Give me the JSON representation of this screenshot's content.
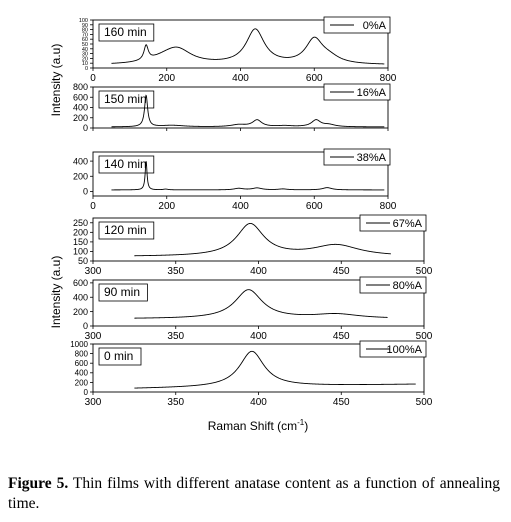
{
  "figure": {
    "ylabel_top": "Intensity (a.u)",
    "ylabel_bottom": "Intensity (a.u)",
    "xlabel": "Raman Shift (cm",
    "xlabel_sup": "-1",
    "xlabel_end": ")"
  },
  "caption": {
    "label": "Figure 5.",
    "text": " Thin films with different anatase content as a function of annealing time."
  },
  "chart_data": [
    {
      "type": "line",
      "panel_label": "160 min",
      "legend": "0%A",
      "xlim": [
        0,
        800
      ],
      "xticks": [
        0,
        200,
        400,
        600,
        800
      ],
      "show_xticklabels": true,
      "yticks": [
        0,
        10,
        20,
        30,
        40,
        50,
        60,
        70,
        80,
        90,
        100
      ],
      "yticklabels": [
        "0",
        "10",
        "20",
        "30",
        "40",
        "50",
        "60",
        "70",
        "80",
        "90",
        "100"
      ],
      "ylim": [
        0,
        100
      ],
      "baseline": {
        "x": [
          50,
          790
        ],
        "y": [
          6,
          6
        ]
      },
      "peaks": [
        {
          "x0": 144,
          "height": 30,
          "width": 7
        },
        {
          "x0": 200,
          "height": 12,
          "width": 55
        },
        {
          "x0": 230,
          "height": 26,
          "width": 45
        },
        {
          "x0": 440,
          "height": 72,
          "width": 30
        },
        {
          "x0": 600,
          "height": 50,
          "width": 28
        },
        {
          "x0": 640,
          "height": 12,
          "width": 35
        }
      ]
    },
    {
      "type": "line",
      "panel_label": "150 min",
      "legend": "16%A",
      "xlim": [
        0,
        800
      ],
      "xticks": [
        0,
        200,
        400,
        600,
        800
      ],
      "show_xticklabels": false,
      "yticks": [
        0,
        200,
        400,
        600,
        800
      ],
      "yticklabels": [
        "0",
        "200",
        "400",
        "600",
        "800"
      ],
      "ylim": [
        0,
        800
      ],
      "baseline": {
        "x": [
          50,
          790
        ],
        "y": [
          20,
          20
        ]
      },
      "peaks": [
        {
          "x0": 144,
          "height": 610,
          "width": 5
        },
        {
          "x0": 215,
          "height": 30,
          "width": 40
        },
        {
          "x0": 395,
          "height": 40,
          "width": 25
        },
        {
          "x0": 445,
          "height": 130,
          "width": 15
        },
        {
          "x0": 520,
          "height": 20,
          "width": 25
        },
        {
          "x0": 605,
          "height": 130,
          "width": 15
        },
        {
          "x0": 640,
          "height": 40,
          "width": 20
        }
      ]
    },
    {
      "type": "line",
      "panel_label": "140 min",
      "legend": "38%A",
      "xlim": [
        0,
        800
      ],
      "xticks": [
        0,
        200,
        400,
        600,
        800
      ],
      "show_xticklabels": true,
      "yticks": [
        0,
        200,
        400
      ],
      "yticklabels": [
        "0",
        "200",
        "400"
      ],
      "ylim": [
        -60,
        520
      ],
      "baseline": {
        "x": [
          50,
          790
        ],
        "y": [
          20,
          20
        ]
      },
      "peaks": [
        {
          "x0": 144,
          "height": 380,
          "width": 3
        },
        {
          "x0": 197,
          "height": 10,
          "width": 8
        },
        {
          "x0": 395,
          "height": 20,
          "width": 15
        },
        {
          "x0": 445,
          "height": 25,
          "width": 15
        },
        {
          "x0": 515,
          "height": 12,
          "width": 15
        },
        {
          "x0": 635,
          "height": 30,
          "width": 15
        }
      ]
    },
    {
      "type": "line",
      "panel_label": "120 min",
      "legend": "67%A",
      "xlim": [
        300,
        500
      ],
      "xticks": [
        300,
        350,
        400,
        450,
        500
      ],
      "show_xticklabels": true,
      "yticks": [
        50,
        100,
        150,
        200,
        250
      ],
      "yticklabels": [
        "50",
        "100",
        "150",
        "200",
        "250"
      ],
      "ylim": [
        50,
        275
      ],
      "baseline": {
        "x": [
          325,
          480
        ],
        "y": [
          73,
          73
        ]
      },
      "peaks": [
        {
          "x0": 395,
          "height": 168,
          "width": 10
        },
        {
          "x0": 447,
          "height": 58,
          "width": 17
        }
      ]
    },
    {
      "type": "line",
      "panel_label": "90 min",
      "legend": "80%A",
      "xlim": [
        300,
        500
      ],
      "xticks": [
        300,
        350,
        400,
        450,
        500
      ],
      "show_xticklabels": true,
      "yticks": [
        0,
        200,
        400,
        600
      ],
      "yticklabels": [
        "0",
        "200",
        "400",
        "600"
      ],
      "ylim": [
        0,
        640
      ],
      "baseline": {
        "x": [
          325,
          478
        ],
        "y": [
          100,
          100
        ]
      },
      "peaks": [
        {
          "x0": 394,
          "height": 400,
          "width": 10
        },
        {
          "x0": 447,
          "height": 60,
          "width": 17
        }
      ]
    },
    {
      "type": "line",
      "panel_label": "0 min",
      "legend": "100%A",
      "xlim": [
        300,
        500
      ],
      "xticks": [
        300,
        350,
        400,
        450,
        500
      ],
      "show_xticklabels": true,
      "yticks": [
        0,
        200,
        400,
        600,
        800,
        1000
      ],
      "yticklabels": [
        "0",
        "200",
        "400",
        "600",
        "800",
        "1000"
      ],
      "ylim": [
        0,
        1000
      ],
      "baseline": {
        "x": [
          325,
          495
        ],
        "y": [
          70,
          160
        ]
      },
      "peaks": [
        {
          "x0": 396,
          "height": 740,
          "width": 9
        }
      ]
    }
  ]
}
